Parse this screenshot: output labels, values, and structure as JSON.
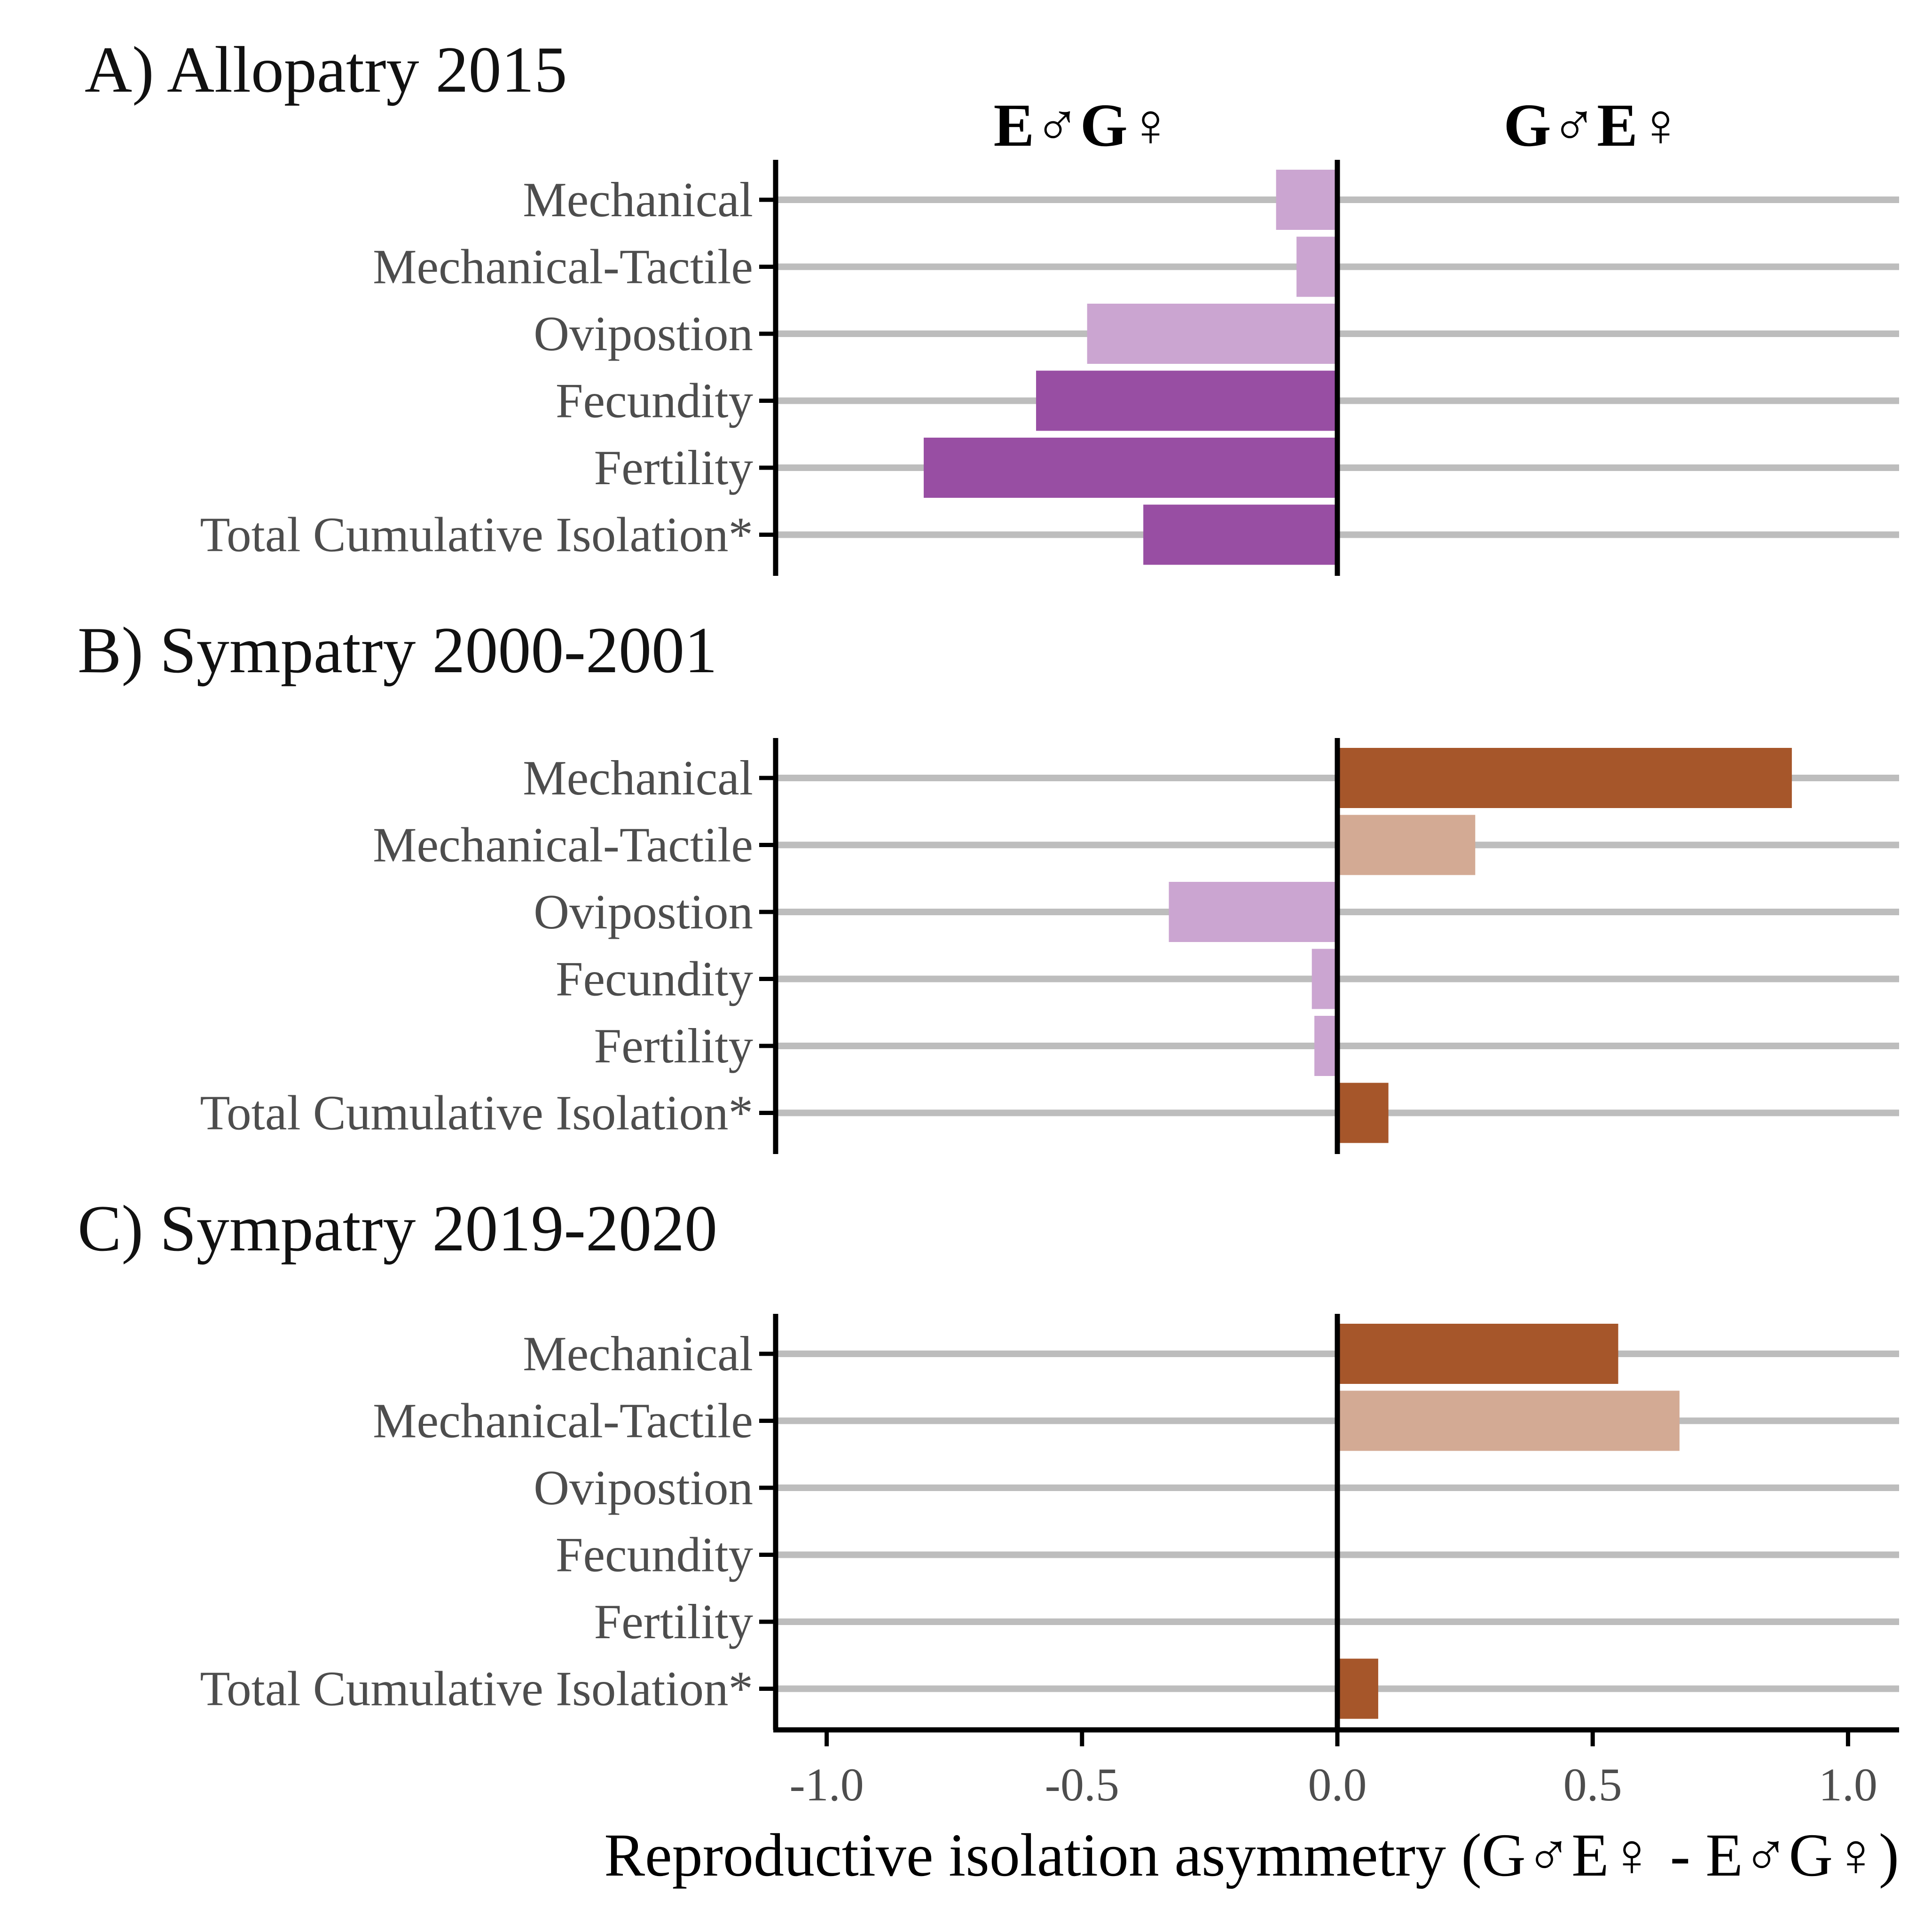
{
  "chart_data": {
    "type": "bar",
    "orientation": "horizontal",
    "headers": {
      "left": "E♂G♀",
      "right": "G♂E♀"
    },
    "xlabel": "Reproductive isolation asymmetry (G♂E♀ - E♂G♀)",
    "xlim": [
      -1.1,
      1.1
    ],
    "xticks": [
      -1.0,
      -0.5,
      0.0,
      0.5,
      1.0
    ],
    "xtick_labels": [
      "-1.0",
      "-0.5",
      "0.0",
      "0.5",
      "1.0"
    ],
    "colors": {
      "purple_strong": "#984ea3",
      "purple_light": "#cba5d1",
      "orange_strong": "#a6562a",
      "orange_light": "#d3aa94",
      "grid": "#bdbdbd"
    },
    "panels": [
      {
        "title": "A) Allopatry 2015",
        "categories": [
          "Mechanical",
          "Mechanical-Tactile",
          "Ovipostion",
          "Fecundity",
          "Fertility",
          "Total Cumulative Isolation*"
        ],
        "values": [
          -0.12,
          -0.08,
          -0.49,
          -0.59,
          -0.81,
          -0.38
        ],
        "strong": [
          false,
          false,
          false,
          true,
          true,
          true
        ]
      },
      {
        "title": "B) Sympatry 2000-2001",
        "categories": [
          "Mechanical",
          "Mechanical-Tactile",
          "Ovipostion",
          "Fecundity",
          "Fertility",
          "Total Cumulative Isolation*"
        ],
        "values": [
          0.89,
          0.27,
          -0.33,
          -0.05,
          -0.045,
          0.1
        ],
        "strong": [
          true,
          false,
          false,
          false,
          false,
          true
        ]
      },
      {
        "title": "C) Sympatry 2019-2020",
        "categories": [
          "Mechanical",
          "Mechanical-Tactile",
          "Ovipostion",
          "Fecundity",
          "Fertility",
          "Total Cumulative Isolation*"
        ],
        "values": [
          0.55,
          0.67,
          null,
          null,
          null,
          0.08
        ],
        "strong": [
          true,
          false,
          false,
          false,
          false,
          true
        ]
      }
    ]
  }
}
